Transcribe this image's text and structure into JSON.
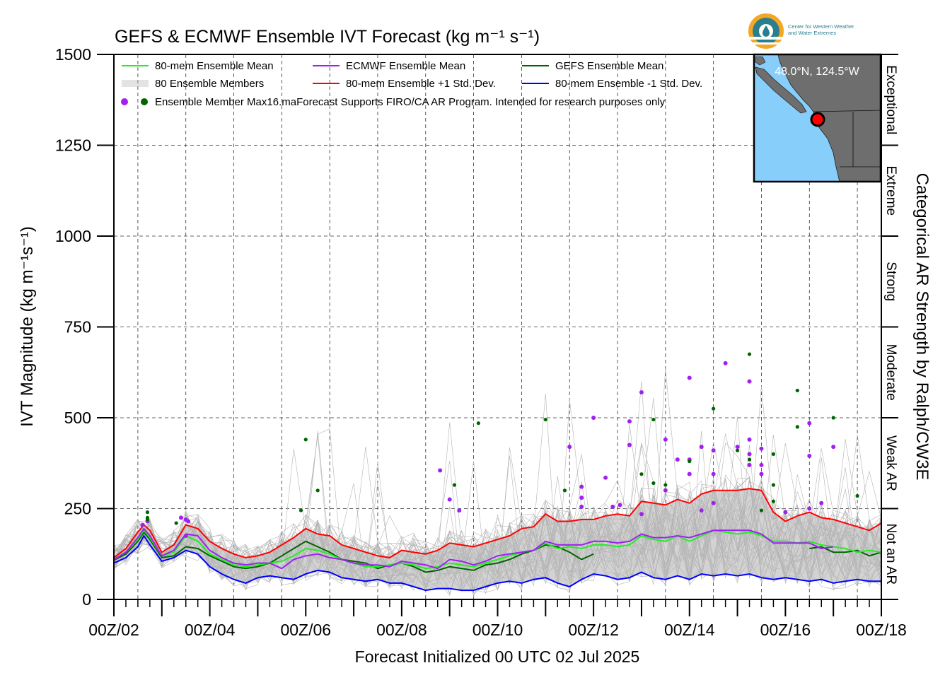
{
  "chart_data": {
    "type": "line",
    "title": "GEFS & ECMWF Ensemble IVT Forecast (kg m⁻¹ s⁻¹)",
    "xlabel": "Forecast Initialized 00 UTC 02 Jul 2025",
    "ylabel": "IVT Magnitude (kg m⁻¹s⁻¹)",
    "right_axis_label": "Categorical AR Strength by Ralph/CW3E",
    "ylim": [
      0,
      1500
    ],
    "xlim_days": [
      2,
      18
    ],
    "y_ticks": [
      "0",
      "250",
      "500",
      "750",
      "1000",
      "1250",
      "1500"
    ],
    "x_ticks": [
      "00Z/02",
      "00Z/04",
      "00Z/06",
      "00Z/08",
      "00Z/10",
      "00Z/12",
      "00Z/14",
      "00Z/16",
      "00Z/18"
    ],
    "categories": [
      "Not an AR",
      "Weak AR",
      "Moderate",
      "Strong",
      "Extreme",
      "Exceptional"
    ],
    "category_bounds": [
      0,
      250,
      500,
      750,
      1000,
      1250,
      1500
    ],
    "grid": true,
    "legend_position": "top-left",
    "legend": [
      {
        "label": "80-mem Ensemble Mean",
        "color": "#22ee22",
        "style": "line"
      },
      {
        "label": "ECMWF Ensemble Mean",
        "color": "#a020f0",
        "style": "line"
      },
      {
        "label": "GEFS Ensemble Mean",
        "color": "#006400",
        "style": "line"
      },
      {
        "label": "80 Ensemble Members",
        "color": "#b4b4b4",
        "style": "multi"
      },
      {
        "label": "80-mem Ensemble +1 Std. Dev.",
        "color": "#ff0000",
        "style": "line"
      },
      {
        "label": "80-mem Ensemble -1 Std. Dev.",
        "color": "#0000ff",
        "style": "line"
      },
      {
        "label": "Ensemble Member Max16.maForecast Supports FIRO/CA AR Program. Intended for research purposes only",
        "colors": [
          "#a020f0",
          "#006400"
        ],
        "style": "dots"
      }
    ],
    "series": [
      {
        "name": "80-mem Ensemble Mean",
        "color": "#22ee22",
        "x": [
          2.0,
          2.25,
          2.5,
          2.625,
          2.75,
          3.0,
          3.25,
          3.5,
          3.75,
          4.0,
          4.25,
          4.5,
          4.75,
          5.0,
          5.25,
          5.5,
          5.75,
          6.0,
          6.25,
          6.5,
          6.75,
          7.0,
          7.25,
          7.5,
          7.75,
          8.0,
          8.25,
          8.5,
          8.75,
          9.0,
          9.25,
          9.5,
          9.75,
          10.0,
          10.25,
          10.5,
          10.75,
          11.0,
          11.25,
          11.5,
          11.75,
          12.0,
          12.25,
          12.5,
          12.75,
          13.0,
          13.25,
          13.5,
          13.75,
          14.0,
          14.25,
          14.5,
          14.75,
          15.0,
          15.25,
          15.5,
          15.75,
          16.0,
          16.25,
          16.5,
          16.75,
          17.0,
          17.25,
          17.5,
          17.75,
          18.0
        ],
        "y": [
          110,
          130,
          165,
          190,
          170,
          120,
          130,
          175,
          160,
          125,
          110,
          95,
          90,
          95,
          100,
          105,
          120,
          140,
          135,
          125,
          110,
          100,
          90,
          90,
          95,
          100,
          95,
          85,
          90,
          100,
          95,
          90,
          100,
          110,
          120,
          130,
          135,
          155,
          140,
          145,
          140,
          150,
          150,
          145,
          150,
          175,
          165,
          160,
          175,
          160,
          175,
          190,
          185,
          180,
          185,
          175,
          160,
          160,
          155,
          160,
          150,
          145,
          140,
          130,
          135,
          130
        ]
      },
      {
        "name": "ECMWF Ensemble Mean",
        "color": "#a020f0",
        "x": [
          2.0,
          2.25,
          2.5,
          2.625,
          2.75,
          3.0,
          3.25,
          3.5,
          3.75,
          4.0,
          4.25,
          4.5,
          4.75,
          5.0,
          5.25,
          5.5,
          5.75,
          6.0,
          6.25,
          6.5,
          6.75,
          7.0,
          7.25,
          7.5,
          7.75,
          8.0,
          8.25,
          8.5,
          8.75,
          9.0,
          9.25,
          9.5,
          9.75,
          10.0,
          10.25,
          10.5,
          10.75,
          11.0,
          11.25,
          11.5,
          11.75,
          12.0,
          12.25,
          12.5,
          12.75,
          13.0,
          13.25,
          13.5,
          13.75,
          14.0,
          14.25,
          14.5,
          14.75,
          15.0,
          15.25,
          15.5,
          15.75,
          16.0,
          16.25,
          16.5,
          16.75,
          17.0
        ],
        "y": [
          110,
          130,
          170,
          195,
          175,
          120,
          135,
          180,
          175,
          135,
          115,
          100,
          95,
          100,
          100,
          85,
          110,
          120,
          125,
          115,
          110,
          100,
          95,
          95,
          90,
          105,
          100,
          95,
          85,
          110,
          105,
          95,
          105,
          120,
          125,
          130,
          135,
          160,
          150,
          150,
          150,
          160,
          160,
          155,
          160,
          180,
          170,
          170,
          175,
          170,
          180,
          190,
          190,
          190,
          190,
          180,
          155,
          155,
          155,
          155,
          140,
          145
        ]
      },
      {
        "name": "GEFS Ensemble Mean",
        "color": "#006400",
        "x": [
          2.0,
          2.25,
          2.5,
          2.625,
          2.75,
          3.0,
          3.25,
          3.5,
          3.75,
          4.0,
          4.25,
          4.5,
          4.75,
          5.0,
          5.25,
          5.5,
          5.75,
          6.0,
          6.25,
          6.5,
          6.75,
          7.0,
          7.25,
          7.5,
          7.75,
          8.0,
          8.25,
          8.5,
          8.75,
          9.0,
          9.25,
          9.5,
          9.75,
          10.0,
          10.25,
          10.5,
          10.75,
          11.0,
          11.25,
          11.5,
          11.75,
          12.0
        ],
        "y": [
          108,
          125,
          160,
          185,
          165,
          115,
          120,
          145,
          140,
          120,
          105,
          90,
          85,
          90,
          100,
          120,
          140,
          160,
          145,
          130,
          110,
          105,
          100,
          85,
          95,
          100,
          90,
          75,
          80,
          90,
          85,
          80,
          95,
          100,
          110,
          125,
          135,
          150,
          145,
          130,
          110,
          125
        ]
      },
      {
        "name": "GEFS Ensemble Mean (cont.)",
        "color": "#006400",
        "x": [
          16.5,
          16.75,
          17.0,
          17.25,
          17.5,
          17.75,
          18.0
        ],
        "y": [
          140,
          145,
          130,
          130,
          135,
          120,
          130
        ]
      },
      {
        "name": "80-mem Ensemble +1 Std. Dev.",
        "color": "#ff0000",
        "x": [
          2.0,
          2.25,
          2.5,
          2.625,
          2.75,
          3.0,
          3.25,
          3.5,
          3.75,
          4.0,
          4.25,
          4.5,
          4.75,
          5.0,
          5.25,
          5.5,
          5.75,
          6.0,
          6.25,
          6.5,
          6.75,
          7.0,
          7.25,
          7.5,
          7.75,
          8.0,
          8.25,
          8.5,
          8.75,
          9.0,
          9.25,
          9.5,
          9.75,
          10.0,
          10.25,
          10.5,
          10.75,
          11.0,
          11.25,
          11.5,
          11.75,
          12.0,
          12.25,
          12.5,
          12.75,
          13.0,
          13.25,
          13.5,
          13.75,
          14.0,
          14.25,
          14.5,
          14.75,
          15.0,
          15.25,
          15.5,
          15.75,
          16.0,
          16.25,
          16.5,
          16.75,
          17.0,
          17.25,
          17.5,
          17.75,
          18.0
        ],
        "y": [
          115,
          140,
          185,
          205,
          190,
          130,
          150,
          205,
          195,
          160,
          140,
          125,
          115,
          120,
          130,
          150,
          170,
          195,
          180,
          175,
          150,
          140,
          130,
          120,
          115,
          135,
          130,
          125,
          135,
          155,
          150,
          145,
          155,
          165,
          175,
          195,
          200,
          235,
          215,
          215,
          220,
          220,
          230,
          235,
          230,
          270,
          265,
          260,
          275,
          265,
          290,
          300,
          300,
          300,
          305,
          300,
          240,
          215,
          230,
          240,
          225,
          220,
          210,
          200,
          190,
          210
        ]
      },
      {
        "name": "80-mem Ensemble -1 Std. Dev.",
        "color": "#0000ff",
        "x": [
          2.0,
          2.25,
          2.5,
          2.625,
          2.75,
          3.0,
          3.25,
          3.5,
          3.75,
          4.0,
          4.25,
          4.5,
          4.75,
          5.0,
          5.25,
          5.5,
          5.75,
          6.0,
          6.25,
          6.5,
          6.75,
          7.0,
          7.25,
          7.5,
          7.75,
          8.0,
          8.25,
          8.5,
          8.75,
          9.0,
          9.25,
          9.5,
          9.75,
          10.0,
          10.25,
          10.5,
          10.75,
          11.0,
          11.25,
          11.5,
          11.75,
          12.0,
          12.25,
          12.5,
          12.75,
          13.0,
          13.25,
          13.5,
          13.75,
          14.0,
          14.25,
          14.5,
          14.75,
          15.0,
          15.25,
          15.5,
          15.75,
          16.0,
          16.25,
          16.5,
          16.75,
          17.0,
          17.25,
          17.5,
          17.75,
          18.0
        ],
        "y": [
          100,
          115,
          145,
          175,
          150,
          105,
          115,
          135,
          125,
          90,
          70,
          55,
          45,
          60,
          65,
          60,
          55,
          70,
          80,
          75,
          60,
          55,
          50,
          55,
          45,
          45,
          35,
          25,
          30,
          30,
          25,
          25,
          35,
          45,
          50,
          45,
          55,
          60,
          45,
          35,
          55,
          70,
          65,
          55,
          60,
          75,
          60,
          55,
          65,
          55,
          70,
          65,
          70,
          65,
          70,
          60,
          55,
          60,
          55,
          50,
          55,
          45,
          50,
          55,
          50,
          50
        ]
      }
    ],
    "member_max_dots": {
      "ECMWF": [
        [
          2.6,
          205
        ],
        [
          2.7,
          215
        ],
        [
          3.4,
          225
        ],
        [
          3.5,
          220
        ],
        [
          3.55,
          215
        ],
        [
          3.5,
          175
        ],
        [
          8.8,
          355
        ],
        [
          9.0,
          275
        ],
        [
          9.2,
          245
        ],
        [
          11.5,
          420
        ],
        [
          11.75,
          310
        ],
        [
          11.75,
          280
        ],
        [
          11.75,
          255
        ],
        [
          12.0,
          500
        ],
        [
          12.25,
          335
        ],
        [
          12.4,
          255
        ],
        [
          12.55,
          260
        ],
        [
          12.75,
          490
        ],
        [
          12.75,
          425
        ],
        [
          13.0,
          570
        ],
        [
          13.0,
          235
        ],
        [
          13.5,
          440
        ],
        [
          13.5,
          300
        ],
        [
          13.75,
          385
        ],
        [
          14.0,
          610
        ],
        [
          14.0,
          385
        ],
        [
          14.0,
          345
        ],
        [
          14.25,
          420
        ],
        [
          14.25,
          245
        ],
        [
          14.5,
          410
        ],
        [
          14.5,
          345
        ],
        [
          14.5,
          265
        ],
        [
          14.75,
          650
        ],
        [
          15.0,
          420
        ],
        [
          15.25,
          600
        ],
        [
          15.25,
          440
        ],
        [
          15.25,
          400
        ],
        [
          15.25,
          370
        ],
        [
          15.5,
          415
        ],
        [
          15.5,
          370
        ],
        [
          15.5,
          345
        ],
        [
          16.0,
          240
        ],
        [
          16.5,
          485
        ],
        [
          16.5,
          395
        ],
        [
          16.5,
          250
        ],
        [
          16.75,
          265
        ],
        [
          17.0,
          420
        ]
      ],
      "GEFS": [
        [
          2.7,
          240
        ],
        [
          2.7,
          225
        ],
        [
          2.7,
          220
        ],
        [
          3.3,
          210
        ],
        [
          5.9,
          245
        ],
        [
          6.0,
          440
        ],
        [
          6.25,
          300
        ],
        [
          9.1,
          315
        ],
        [
          9.6,
          485
        ],
        [
          11.0,
          495
        ],
        [
          11.4,
          300
        ],
        [
          13.0,
          345
        ],
        [
          13.25,
          495
        ],
        [
          13.25,
          320
        ],
        [
          13.5,
          315
        ],
        [
          14.0,
          380
        ],
        [
          14.5,
          525
        ],
        [
          15.0,
          410
        ],
        [
          15.25,
          675
        ],
        [
          15.25,
          385
        ],
        [
          15.5,
          245
        ],
        [
          15.75,
          400
        ],
        [
          15.75,
          315
        ],
        [
          15.75,
          270
        ],
        [
          16.25,
          575
        ],
        [
          16.25,
          475
        ],
        [
          17.0,
          500
        ],
        [
          17.5,
          285
        ]
      ]
    },
    "inset_map_label": "48.0°N, 124.5°W",
    "logo_text": [
      "Center for Western Weather",
      "and Water Extremes"
    ]
  },
  "colors": {
    "ocean": "#87cefa",
    "land": "#6e6e6e",
    "spread": "#d3d3d3",
    "member": "#b4b4b4",
    "marker": "#ff0000",
    "logo_orange": "#f5a623",
    "logo_teal": "#2a7f8e"
  }
}
